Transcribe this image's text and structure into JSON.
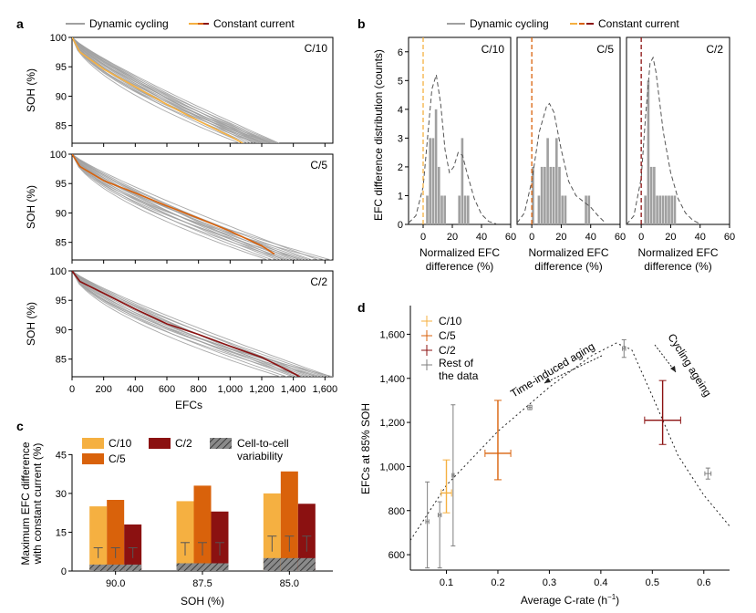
{
  "colors": {
    "c10": "#f5b041",
    "c5": "#d9620b",
    "c2": "#8b1111",
    "grey": "#a0a0a0",
    "grey_dark": "#7f7f7f",
    "hatch": "#555555"
  },
  "chart_data": [
    {
      "panel": "a",
      "type": "line",
      "legend": [
        "Dynamic cycling",
        "Constant current"
      ],
      "xlabel": "EFCs",
      "ylabel": "SOH (%)",
      "xlim": [
        0,
        1650
      ],
      "ylim": [
        82,
        100
      ],
      "xticks": [
        0,
        200,
        400,
        600,
        800,
        1000,
        1200,
        1400,
        1600
      ],
      "xtick_labels": [
        "0",
        "200",
        "400",
        "600",
        "800",
        "1,000",
        "1,200",
        "1,400",
        "1,600"
      ],
      "yticks": [
        85,
        90,
        95,
        100
      ],
      "subplots": [
        {
          "rate": "C/10",
          "color_key": "c10",
          "constant": {
            "x": [
              0,
              50,
              200,
              400,
              600,
              800,
              1000,
              1080
            ],
            "y": [
              100,
              97.5,
              94.6,
              91.6,
              88.6,
              85.8,
              83.2,
              82
            ]
          },
          "dynamic_end_efc": [
            1060,
            1090,
            1110,
            1130,
            1150,
            1170,
            1180,
            1190,
            1200,
            1210,
            1220,
            1230,
            1240,
            1250,
            1260,
            1270,
            1280,
            1290,
            1300,
            1310
          ]
        },
        {
          "rate": "C/5",
          "color_key": "c5",
          "constant": {
            "x": [
              0,
              50,
              200,
              400,
              600,
              800,
              1000,
              1200,
              1280
            ],
            "y": [
              100,
              97.9,
              95.5,
              93.4,
              91.2,
              89.1,
              86.9,
              84.4,
              83
            ]
          },
          "dynamic_end_efc": [
            1240,
            1270,
            1300,
            1320,
            1340,
            1360,
            1380,
            1400,
            1420,
            1440,
            1460,
            1480,
            1500,
            1520,
            1560,
            1600,
            1640
          ]
        },
        {
          "rate": "C/2",
          "color_key": "c2",
          "constant": {
            "x": [
              0,
              50,
              200,
              400,
              600,
              800,
              1000,
              1200,
              1400,
              1440
            ],
            "y": [
              100,
              98.2,
              96.2,
              93.5,
              91,
              89.2,
              87.2,
              85.3,
              82.6,
              82
            ]
          },
          "dynamic_end_efc": [
            1320,
            1360,
            1400,
            1420,
            1440,
            1460,
            1480,
            1500,
            1520,
            1540,
            1560,
            1580,
            1600,
            1620,
            1640,
            1650
          ]
        }
      ]
    },
    {
      "panel": "b",
      "type": "histogram",
      "legend": [
        "Dynamic cycling",
        "Constant current"
      ],
      "ylabel": "EFC difference distribution (counts)",
      "xlabel": "Normalized EFC difference (%)",
      "xlim": [
        -10,
        60
      ],
      "ylim": [
        0,
        6.5
      ],
      "xticks": [
        0,
        20,
        40,
        60
      ],
      "yticks": [
        0,
        1,
        2,
        3,
        4,
        5,
        6
      ],
      "bin_width": 2,
      "subplots": [
        {
          "rate": "C/10",
          "color_key": "c10",
          "bins_start": [
            2,
            4,
            6,
            8,
            10,
            12,
            14,
            24,
            26,
            28,
            30
          ],
          "counts": [
            1,
            3,
            3,
            4,
            2,
            1,
            1,
            1,
            3,
            1,
            1
          ],
          "kde": {
            "x": [
              -10,
              -5,
              0,
              3,
              6,
              9,
              12,
              15,
              18,
              21,
              24,
              27,
              30,
              35,
              40,
              45,
              50
            ],
            "y": [
              0.05,
              0.3,
              1.3,
              3.0,
              4.7,
              5.2,
              4.2,
              2.6,
              1.8,
              2.0,
              2.5,
              2.4,
              1.8,
              0.9,
              0.35,
              0.1,
              0.02
            ]
          }
        },
        {
          "rate": "C/5",
          "color_key": "c5",
          "bins_start": [
            0,
            4,
            6,
            8,
            10,
            12,
            14,
            16,
            18,
            20,
            22,
            36,
            38
          ],
          "counts": [
            2,
            1,
            2,
            2,
            3,
            2,
            2,
            3,
            2,
            1,
            1,
            1,
            1
          ],
          "kde": {
            "x": [
              -10,
              -5,
              0,
              5,
              10,
              12,
              15,
              20,
              25,
              30,
              35,
              40,
              45,
              50
            ],
            "y": [
              0.05,
              0.4,
              1.5,
              3.2,
              4.1,
              4.2,
              3.9,
              2.6,
              1.5,
              1.0,
              0.8,
              0.6,
              0.3,
              0.05
            ]
          }
        },
        {
          "rate": "C/2",
          "color_key": "c2",
          "bins_start": [
            2,
            4,
            6,
            8,
            10,
            12,
            14,
            16,
            18,
            20,
            22
          ],
          "counts": [
            1,
            5,
            2,
            2,
            1,
            1,
            1,
            1,
            1,
            1,
            1
          ],
          "kde": {
            "x": [
              -10,
              -5,
              0,
              3,
              6,
              8,
              10,
              15,
              20,
              25,
              30,
              35,
              40
            ],
            "y": [
              0.0,
              0.3,
              1.6,
              3.8,
              5.6,
              5.8,
              5.3,
              3.2,
              1.8,
              0.9,
              0.4,
              0.15,
              0.02
            ]
          }
        }
      ]
    },
    {
      "panel": "c",
      "type": "bar",
      "ylabel": "Maximum EFC difference with constant current (%)",
      "xlabel": "SOH (%)",
      "categories": [
        "90.0",
        "87.5",
        "85.0"
      ],
      "ylim": [
        0,
        55
      ],
      "yticks": [
        0,
        15,
        30,
        45
      ],
      "legend": [
        "C/10",
        "C/5",
        "C/2",
        "Cell-to-cell variability"
      ],
      "series": [
        {
          "name": "C/10",
          "color_key": "c10",
          "values": [
            25,
            27,
            30
          ]
        },
        {
          "name": "C/5",
          "color_key": "c5",
          "values": [
            27.5,
            33,
            38.5
          ]
        },
        {
          "name": "C/2",
          "color_key": "c2",
          "values": [
            18,
            23,
            26
          ]
        }
      ],
      "variability": {
        "hatch_height": [
          2.5,
          3,
          5
        ],
        "err_mean": [
          5,
          6,
          7.5
        ],
        "err_upper": [
          9,
          11,
          13.5
        ]
      }
    },
    {
      "panel": "d",
      "type": "scatter",
      "xlabel": "Average C-rate (h",
      "xlabel_sup": "−1",
      "xlabel_close": ")",
      "ylabel": "EFCs at 85% SOH",
      "xlim": [
        0.03,
        0.65
      ],
      "ylim": [
        530,
        1730
      ],
      "xticks": [
        0.1,
        0.2,
        0.3,
        0.4,
        0.5,
        0.6
      ],
      "xtick_labels": [
        "0.1",
        "0.2",
        "0.3",
        "0.4",
        "0.5",
        "0.6"
      ],
      "yticks": [
        600,
        800,
        1000,
        1200,
        1400,
        1600
      ],
      "ytick_labels": [
        "600",
        "800",
        "1,000",
        "1,200",
        "1,400",
        "1,600"
      ],
      "legend": [
        "C/10",
        "C/5",
        "C/2",
        "Rest of the data"
      ],
      "points": [
        {
          "name": "C/10",
          "color_key": "c10",
          "x": 0.1,
          "y": 880,
          "xerr": 0.01,
          "yerr_lo": 90,
          "yerr_hi": 150
        },
        {
          "name": "C/5",
          "color_key": "c5",
          "x": 0.2,
          "y": 1060,
          "xerr": 0.025,
          "yerr_lo": 120,
          "yerr_hi": 240
        },
        {
          "name": "C/2",
          "color_key": "c2",
          "x": 0.52,
          "y": 1210,
          "xerr": 0.035,
          "yerr_lo": 110,
          "yerr_hi": 180
        },
        {
          "name": "Rest",
          "color_key": "grey_dark",
          "x": 0.063,
          "y": 750,
          "xerr": 0.003,
          "yerr_lo": 210,
          "yerr_hi": 180
        },
        {
          "name": "Rest",
          "color_key": "grey_dark",
          "x": 0.087,
          "y": 780,
          "xerr": 0.003,
          "yerr_lo": 240,
          "yerr_hi": 60
        },
        {
          "name": "Rest",
          "color_key": "grey_dark",
          "x": 0.113,
          "y": 960,
          "xerr": 0.002,
          "yerr_lo": 320,
          "yerr_hi": 320
        },
        {
          "name": "Rest",
          "color_key": "grey_dark",
          "x": 0.262,
          "y": 1268,
          "xerr": 0.004,
          "yerr_lo": 10,
          "yerr_hi": 10
        },
        {
          "name": "Rest",
          "color_key": "grey_dark",
          "x": 0.445,
          "y": 1535,
          "xerr": 0.003,
          "yerr_lo": 40,
          "yerr_hi": 40
        },
        {
          "name": "Rest",
          "color_key": "grey_dark",
          "x": 0.608,
          "y": 968,
          "xerr": 0.006,
          "yerr_lo": 25,
          "yerr_hi": 25
        }
      ],
      "fit_curve": {
        "x": [
          0.03,
          0.1,
          0.2,
          0.3,
          0.38,
          0.43,
          0.46,
          0.5,
          0.55,
          0.6,
          0.65
        ],
        "y": [
          665,
          915,
          1160,
          1360,
          1500,
          1560,
          1530,
          1320,
          1050,
          870,
          730
        ]
      },
      "annotations": [
        "Time-induced aging",
        "Cycling ageing"
      ]
    }
  ],
  "labels": {
    "panel_a": "a",
    "panel_b": "b",
    "panel_c": "c",
    "panel_d": "d",
    "legend_dynamic": "Dynamic cycling",
    "legend_constant": "Constant current",
    "rate_c10": "C/10",
    "rate_c5": "C/5",
    "rate_c2": "C/2",
    "soh_axis": "SOH (%)",
    "efcs_axis": "EFCs",
    "b_ylabel": "EFC difference distribution (counts)",
    "b_xlabel_1": "Normalized EFC",
    "b_xlabel_2": "difference (%)",
    "c_ylabel_1": "Maximum EFC difference",
    "c_ylabel_2": "with constant current (%)",
    "c_xlabel": "SOH (%)",
    "c_legend_var_1": "Cell-to-cell",
    "c_legend_var_2": "variability",
    "d_legend_rest_1": "Rest of",
    "d_legend_rest_2": "the data",
    "d_ylabel": "EFCs at 85% SOH",
    "d_ann_time": "Time-induced aging",
    "d_ann_cycle": "Cycling ageing"
  }
}
